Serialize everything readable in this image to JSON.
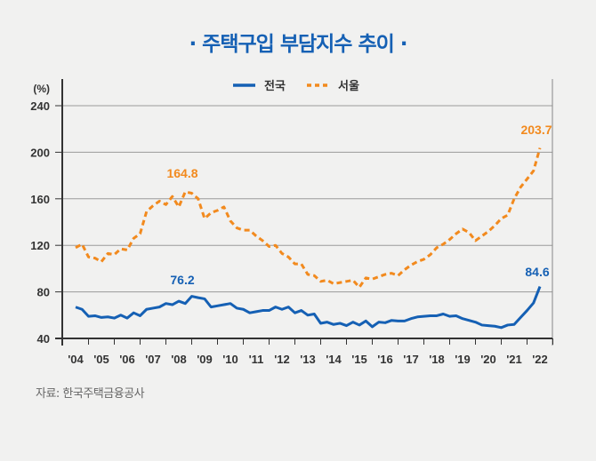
{
  "title": "· 주택구입 부담지수 추이 ·",
  "source": "자료: 한국주택금융공사",
  "chart_data": {
    "type": "line",
    "title": "주택구입 부담지수 추이",
    "ylabel": "(%)",
    "ylim": [
      40,
      240
    ],
    "yticks": [
      40,
      80,
      120,
      160,
      200,
      240
    ],
    "xticks": [
      "'04",
      "'05",
      "'06",
      "'07",
      "'08",
      "'09",
      "'10",
      "'11",
      "'12",
      "'13",
      "'14",
      "'15",
      "'16",
      "'17",
      "'18",
      "'19",
      "'20",
      "'21",
      "'22"
    ],
    "x_range": [
      "2004 Q1",
      "2022 Q1"
    ],
    "grid": true,
    "legend": "top-center",
    "series": [
      {
        "name": "전국",
        "color": "#1560b4",
        "style": "solid",
        "values": [
          66.9,
          65,
          59,
          59.5,
          58,
          58.5,
          57.5,
          60,
          57.5,
          62,
          59.5,
          65,
          66,
          67,
          70,
          69,
          72,
          70,
          76.2,
          75,
          74,
          67,
          68,
          69,
          70,
          66,
          65,
          62,
          63,
          64,
          64,
          67,
          65,
          67,
          62,
          64,
          60,
          61,
          53,
          54,
          52,
          53,
          51,
          54,
          51.5,
          55,
          50,
          54,
          53.5,
          55.5,
          55,
          55,
          57,
          58.5,
          59,
          59.5,
          59.5,
          61,
          59,
          59.5,
          57,
          55.5,
          54,
          51.5,
          51,
          50.5,
          49.3,
          51.5,
          52,
          58,
          64,
          70.5,
          84.6
        ]
      },
      {
        "name": "서울",
        "color": "#f28a1e",
        "style": "dashed",
        "values": [
          118,
          121,
          110,
          109,
          106,
          113,
          112,
          117,
          116,
          126,
          130,
          149,
          154,
          158,
          155,
          162,
          153,
          166,
          164.8,
          160,
          143,
          148,
          150,
          153,
          141,
          135,
          133,
          133,
          128,
          124,
          119,
          120,
          113,
          110,
          104,
          104,
          95,
          94,
          89,
          90,
          87,
          88,
          89,
          90,
          84,
          92,
          91,
          93,
          95,
          96,
          94,
          99,
          103,
          106,
          108,
          112,
          118,
          121,
          125,
          130,
          134,
          131,
          124,
          128,
          132,
          137,
          143,
          146,
          160,
          170,
          177,
          184,
          203.7
        ]
      }
    ],
    "annotations": [
      "164.8",
      "76.2",
      "203.7",
      "84.6"
    ]
  }
}
